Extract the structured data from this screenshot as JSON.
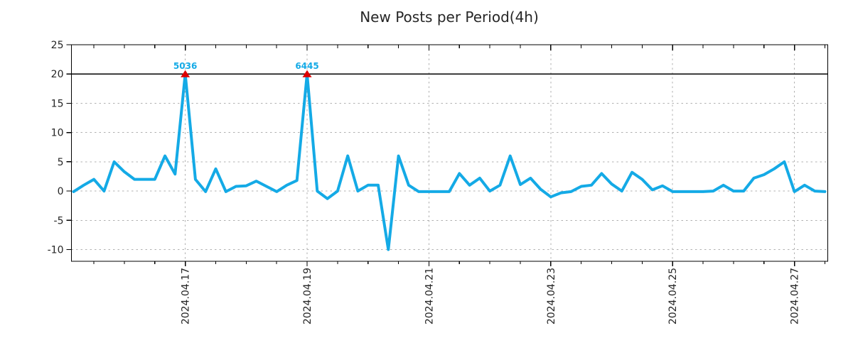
{
  "chart_data": {
    "type": "line",
    "title": "New Posts per Period(4h)",
    "period": "4h",
    "xlabel": "",
    "ylabel": "",
    "y_ticks": [
      25,
      20,
      15,
      10,
      5,
      0,
      -5,
      -10
    ],
    "ylim": [
      -12,
      25
    ],
    "grid": "dashed",
    "legend_position": "none",
    "clip_value": 20,
    "x_tick_labels": [
      "2024.04.17",
      "2024.04.19",
      "2024.04.21",
      "2024.04.23",
      "2024.04.25",
      "2024.04.27"
    ],
    "x_tick_indices": [
      11,
      23,
      35,
      47,
      59,
      71
    ],
    "minor_tick_step_periods": 3,
    "values": [
      -0.1,
      1.0,
      2.0,
      0.0,
      5.0,
      3.3,
      2.0,
      2.0,
      2.0,
      6.0,
      2.9,
      5036,
      2.0,
      -0.1,
      3.8,
      -0.1,
      0.8,
      0.9,
      1.7,
      0.8,
      -0.1,
      1.0,
      1.8,
      6445,
      0.0,
      -1.3,
      0.0,
      6.0,
      0.0,
      1.0,
      1.0,
      -10.0,
      6.0,
      1.0,
      -0.1,
      -0.1,
      -0.1,
      -0.1,
      3.0,
      1.0,
      2.2,
      0.0,
      1.0,
      6.0,
      1.1,
      2.2,
      0.3,
      -1.0,
      -0.3,
      -0.1,
      0.8,
      1.0,
      3.0,
      1.2,
      0.0,
      3.2,
      2.0,
      0.2,
      0.9,
      -0.1,
      -0.1,
      -0.1,
      -0.1,
      0.0,
      1.0,
      0.0,
      0.0,
      2.2,
      2.8,
      3.8,
      5.0,
      -0.1,
      1.0,
      0.0,
      -0.1
    ],
    "annotations": [
      {
        "index": 11,
        "label": "5036",
        "marker": "red-triangle-up"
      },
      {
        "index": 23,
        "label": "6445",
        "marker": "red-triangle-up"
      }
    ],
    "colors": {
      "line": "#14aae6",
      "annotation_text": "#14aae6",
      "peak_marker": "#dd0000",
      "clip_line": "#000000",
      "axis": "#000000",
      "grid": "#b0b0b0",
      "text": "#262626",
      "background": "#ffffff"
    }
  }
}
